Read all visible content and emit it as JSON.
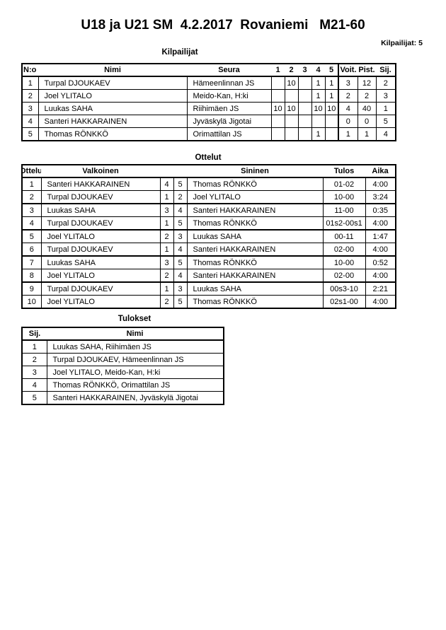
{
  "page": {
    "title": "U18 ja U21 SM  4.2.2017  Rovaniemi   M21-60",
    "competitors_label": "Kilpailijat: 5"
  },
  "kilpailijat": {
    "heading": "Kilpailijat",
    "headers": {
      "no": "N:o",
      "nimi": "Nimi",
      "seura": "Seura",
      "c1": "1",
      "c2": "2",
      "c3": "3",
      "c4": "4",
      "c5": "5",
      "voit": "Voit.",
      "pist": "Pist.",
      "sij": "Sij."
    },
    "rows": [
      {
        "no": "1",
        "nimi": "Turpal DJOUKAEV",
        "seura": "Hämeenlinnan JS",
        "r1": "",
        "r2": "10",
        "r3": "",
        "r4": "1",
        "r5": "1",
        "voit": "3",
        "pist": "12",
        "sij": "2"
      },
      {
        "no": "2",
        "nimi": "Joel YLITALO",
        "seura": "Meido-Kan, H:ki",
        "r1": "",
        "r2": "",
        "r3": "",
        "r4": "1",
        "r5": "1",
        "voit": "2",
        "pist": "2",
        "sij": "3"
      },
      {
        "no": "3",
        "nimi": "Luukas SAHA",
        "seura": "Riihimäen JS",
        "r1": "10",
        "r2": "10",
        "r3": "",
        "r4": "10",
        "r5": "10",
        "voit": "4",
        "pist": "40",
        "sij": "1"
      },
      {
        "no": "4",
        "nimi": "Santeri HAKKARAINEN",
        "seura": "Jyväskylä Jigotai",
        "r1": "",
        "r2": "",
        "r3": "",
        "r4": "",
        "r5": "",
        "voit": "0",
        "pist": "0",
        "sij": "5"
      },
      {
        "no": "5",
        "nimi": "Thomas RÖNKKÖ",
        "seura": "Orimattilan JS",
        "r1": "",
        "r2": "",
        "r3": "",
        "r4": "1",
        "r5": "",
        "voit": "1",
        "pist": "1",
        "sij": "4"
      }
    ]
  },
  "ottelut": {
    "heading": "Ottelut",
    "headers": {
      "ottelu": "Ottelu",
      "valkoinen": "Valkoinen",
      "sininen": "Sininen",
      "tulos": "Tulos",
      "aika": "Aika"
    },
    "rows": [
      {
        "no": "1",
        "valkoinen": "Santeri HAKKARAINEN",
        "vnro": "4",
        "snro": "5",
        "sininen": "Thomas RÖNKKÖ",
        "tulos": "01-02",
        "aika": "4:00"
      },
      {
        "no": "2",
        "valkoinen": "Turpal DJOUKAEV",
        "vnro": "1",
        "snro": "2",
        "sininen": "Joel YLITALO",
        "tulos": "10-00",
        "aika": "3:24"
      },
      {
        "no": "3",
        "valkoinen": "Luukas SAHA",
        "vnro": "3",
        "snro": "4",
        "sininen": "Santeri HAKKARAINEN",
        "tulos": "11-00",
        "aika": "0:35"
      },
      {
        "no": "4",
        "valkoinen": "Turpal DJOUKAEV",
        "vnro": "1",
        "snro": "5",
        "sininen": "Thomas RÖNKKÖ",
        "tulos": "01s2-00s1",
        "aika": "4:00"
      },
      {
        "no": "5",
        "valkoinen": "Joel YLITALO",
        "vnro": "2",
        "snro": "3",
        "sininen": "Luukas SAHA",
        "tulos": "00-11",
        "aika": "1:47"
      },
      {
        "no": "6",
        "valkoinen": "Turpal DJOUKAEV",
        "vnro": "1",
        "snro": "4",
        "sininen": "Santeri HAKKARAINEN",
        "tulos": "02-00",
        "aika": "4:00"
      },
      {
        "no": "7",
        "valkoinen": "Luukas SAHA",
        "vnro": "3",
        "snro": "5",
        "sininen": "Thomas RÖNKKÖ",
        "tulos": "10-00",
        "aika": "0:52"
      },
      {
        "no": "8",
        "valkoinen": "Joel YLITALO",
        "vnro": "2",
        "snro": "4",
        "sininen": "Santeri HAKKARAINEN",
        "tulos": "02-00",
        "aika": "4:00"
      },
      {
        "no": "9",
        "valkoinen": "Turpal DJOUKAEV",
        "vnro": "1",
        "snro": "3",
        "sininen": "Luukas SAHA",
        "tulos": "00s3-10",
        "aika": "2:21"
      },
      {
        "no": "10",
        "valkoinen": "Joel YLITALO",
        "vnro": "2",
        "snro": "5",
        "sininen": "Thomas RÖNKKÖ",
        "tulos": "02s1-00",
        "aika": "4:00"
      }
    ]
  },
  "tulokset": {
    "heading": "Tulokset",
    "headers": {
      "sij": "Sij.",
      "nimi": "Nimi"
    },
    "rows": [
      {
        "sij": "1",
        "nimi": "Luukas SAHA, Riihimäen JS"
      },
      {
        "sij": "2",
        "nimi": "Turpal DJOUKAEV, Hämeenlinnan JS"
      },
      {
        "sij": "3",
        "nimi": "Joel YLITALO, Meido-Kan, H:ki"
      },
      {
        "sij": "4",
        "nimi": "Thomas RÖNKKÖ, Orimattilan JS"
      },
      {
        "sij": "5",
        "nimi": "Santeri HAKKARAINEN, Jyväskylä Jigotai"
      }
    ]
  }
}
